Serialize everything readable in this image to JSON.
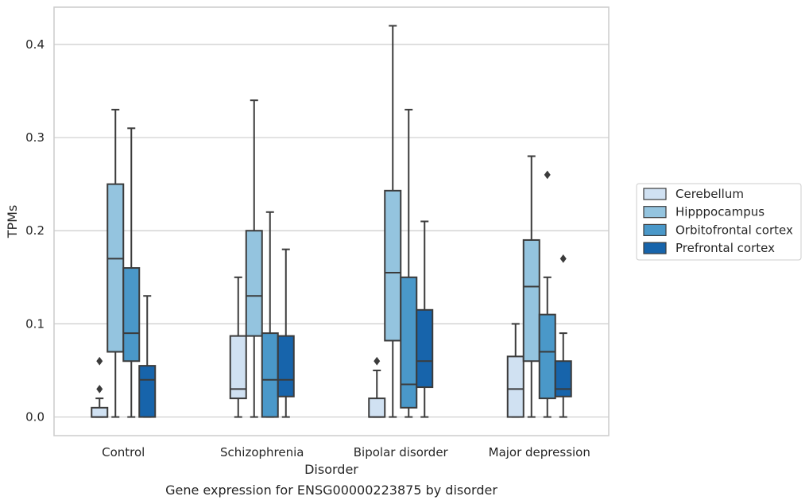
{
  "chart_data": {
    "type": "box",
    "caption": "Gene expression for ENSG00000223875 by disorder",
    "xlabel": "Disorder",
    "ylabel": "TPMs",
    "ylim": [
      -0.02,
      0.44
    ],
    "yticks": [
      0.0,
      0.1,
      0.2,
      0.3,
      0.4
    ],
    "ytick_labels": [
      "0.0",
      "0.1",
      "0.2",
      "0.3",
      "0.4"
    ],
    "grid": "horizontal",
    "legend_position": "right",
    "categories": [
      "Control",
      "Schizophrenia",
      "Bipolar disorder",
      "Major depression"
    ],
    "series": [
      {
        "name": "Cerebellum",
        "color": "#d0e1f2",
        "boxes": [
          {
            "whisker_low": 0.0,
            "q1": 0.0,
            "median": 0.0,
            "q3": 0.01,
            "whisker_high": 0.02,
            "outliers": [
              0.03,
              0.06
            ]
          },
          {
            "whisker_low": 0.0,
            "q1": 0.02,
            "median": 0.03,
            "q3": 0.087,
            "whisker_high": 0.15,
            "outliers": []
          },
          {
            "whisker_low": 0.0,
            "q1": 0.0,
            "median": 0.0,
            "q3": 0.02,
            "whisker_high": 0.05,
            "outliers": [
              0.06
            ]
          },
          {
            "whisker_low": 0.0,
            "q1": 0.0,
            "median": 0.03,
            "q3": 0.065,
            "whisker_high": 0.1,
            "outliers": []
          }
        ]
      },
      {
        "name": "Hipppocampus",
        "color": "#94c4df",
        "boxes": [
          {
            "whisker_low": 0.0,
            "q1": 0.07,
            "median": 0.17,
            "q3": 0.25,
            "whisker_high": 0.33,
            "outliers": []
          },
          {
            "whisker_low": 0.0,
            "q1": 0.087,
            "median": 0.13,
            "q3": 0.2,
            "whisker_high": 0.34,
            "outliers": []
          },
          {
            "whisker_low": 0.0,
            "q1": 0.082,
            "median": 0.155,
            "q3": 0.243,
            "whisker_high": 0.42,
            "outliers": []
          },
          {
            "whisker_low": 0.0,
            "q1": 0.06,
            "median": 0.14,
            "q3": 0.19,
            "whisker_high": 0.28,
            "outliers": []
          }
        ]
      },
      {
        "name": "Orbitofrontal cortex",
        "color": "#4a98c9",
        "boxes": [
          {
            "whisker_low": 0.0,
            "q1": 0.06,
            "median": 0.09,
            "q3": 0.16,
            "whisker_high": 0.31,
            "outliers": []
          },
          {
            "whisker_low": 0.0,
            "q1": 0.0,
            "median": 0.04,
            "q3": 0.09,
            "whisker_high": 0.22,
            "outliers": []
          },
          {
            "whisker_low": 0.0,
            "q1": 0.01,
            "median": 0.035,
            "q3": 0.15,
            "whisker_high": 0.33,
            "outliers": []
          },
          {
            "whisker_low": 0.0,
            "q1": 0.02,
            "median": 0.07,
            "q3": 0.11,
            "whisker_high": 0.15,
            "outliers": [
              0.26
            ]
          }
        ]
      },
      {
        "name": "Prefrontal cortex",
        "color": "#1764ab",
        "boxes": [
          {
            "whisker_low": 0.0,
            "q1": 0.0,
            "median": 0.04,
            "q3": 0.055,
            "whisker_high": 0.13,
            "outliers": []
          },
          {
            "whisker_low": 0.0,
            "q1": 0.022,
            "median": 0.04,
            "q3": 0.087,
            "whisker_high": 0.18,
            "outliers": []
          },
          {
            "whisker_low": 0.0,
            "q1": 0.032,
            "median": 0.06,
            "q3": 0.115,
            "whisker_high": 0.21,
            "outliers": []
          },
          {
            "whisker_low": 0.0,
            "q1": 0.022,
            "median": 0.03,
            "q3": 0.06,
            "whisker_high": 0.09,
            "outliers": [
              0.17
            ]
          }
        ]
      }
    ]
  }
}
